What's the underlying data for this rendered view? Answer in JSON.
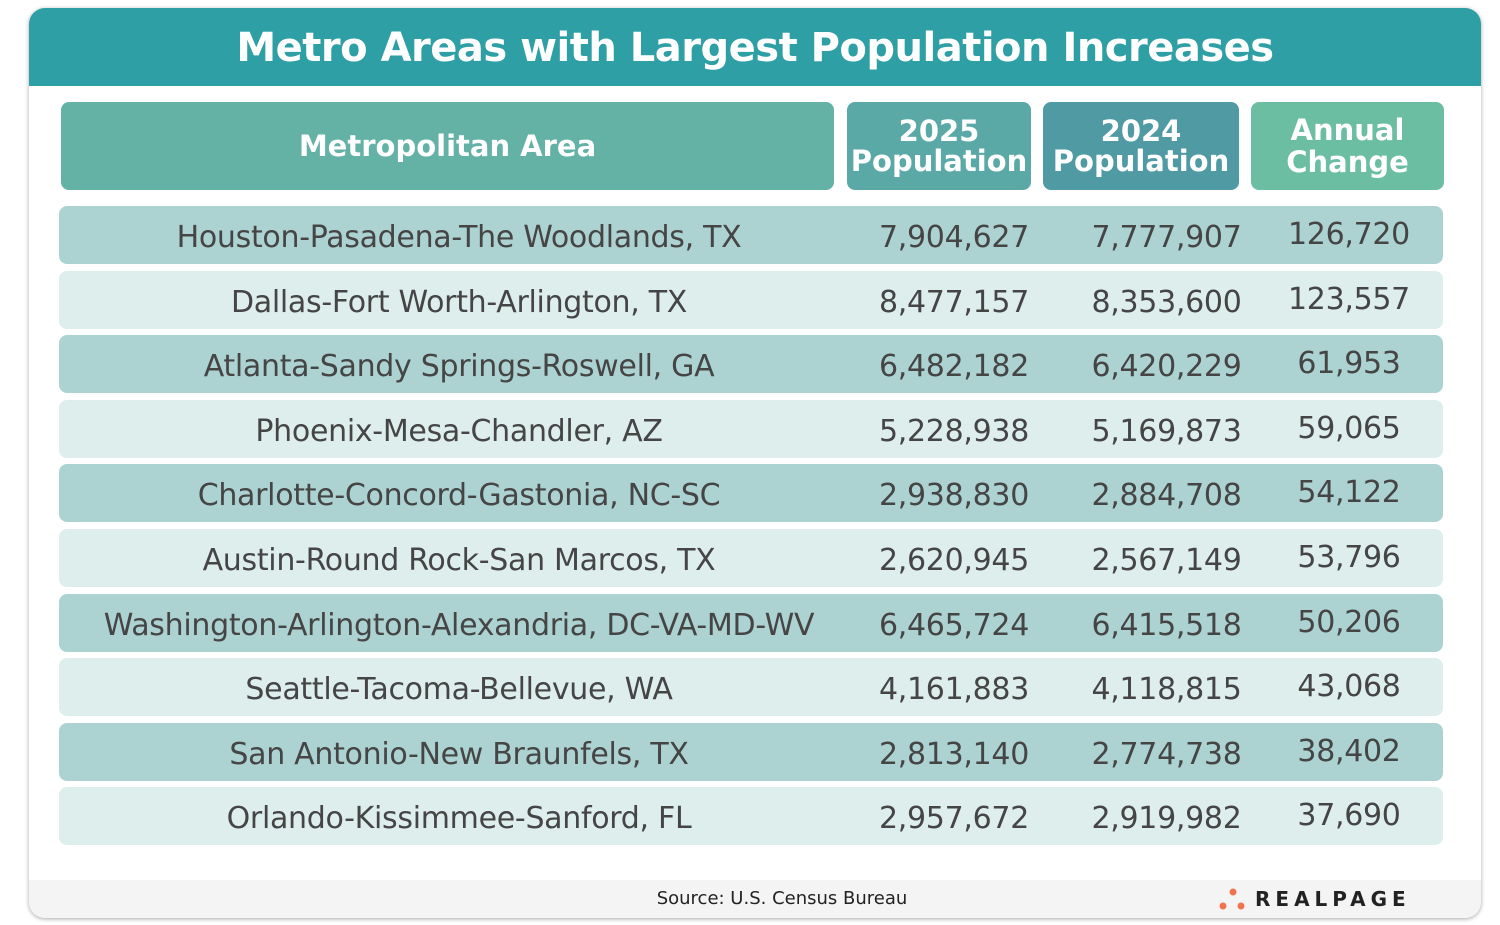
{
  "title": "Metro Areas with Largest Population Increases",
  "colors": {
    "title_bar": "#2e9fa5",
    "header_metro": "#63b2a5",
    "header_2025": "#5aa9a6",
    "header_2024": "#4f9aa3",
    "header_change": "#6cbea3",
    "row_dark": "#acd3d2",
    "row_light": "#ddeeed",
    "logo_dots": "#f0734f"
  },
  "chart_data": {
    "type": "table",
    "columns": [
      "Metropolitan Area",
      "2025 Population",
      "2024 Population",
      "Annual Change"
    ],
    "rows": [
      [
        "Houston-Pasadena-The Woodlands, TX",
        "7,904,627",
        "7,777,907",
        "126,720"
      ],
      [
        "Dallas-Fort Worth-Arlington, TX",
        "8,477,157",
        "8,353,600",
        "123,557"
      ],
      [
        "Atlanta-Sandy Springs-Roswell, GA",
        "6,482,182",
        "6,420,229",
        "61,953"
      ],
      [
        "Phoenix-Mesa-Chandler, AZ",
        "5,228,938",
        "5,169,873",
        "59,065"
      ],
      [
        "Charlotte-Concord-Gastonia, NC-SC",
        "2,938,830",
        "2,884,708",
        "54,122"
      ],
      [
        "Austin-Round Rock-San Marcos, TX",
        "2,620,945",
        "2,567,149",
        "53,796"
      ],
      [
        "Washington-Arlington-Alexandria, DC-VA-MD-WV",
        "6,465,724",
        "6,415,518",
        "50,206"
      ],
      [
        "Seattle-Tacoma-Bellevue, WA",
        "4,161,883",
        "4,118,815",
        "43,068"
      ],
      [
        "San Antonio-New Braunfels, TX",
        "2,813,140",
        "2,774,738",
        "38,402"
      ],
      [
        "Orlando-Kissimmee-Sanford, FL",
        "2,957,672",
        "2,919,982",
        "37,690"
      ]
    ]
  },
  "headers": {
    "metro": "Metropolitan Area",
    "pop2025_l1": "2025",
    "pop2025_l2": "Population",
    "pop2024_l1": "2024",
    "pop2024_l2": "Population",
    "change_l1": "Annual",
    "change_l2": "Change"
  },
  "footer": {
    "source": "Source: U.S. Census Bureau",
    "logo": "REALPAGE"
  }
}
